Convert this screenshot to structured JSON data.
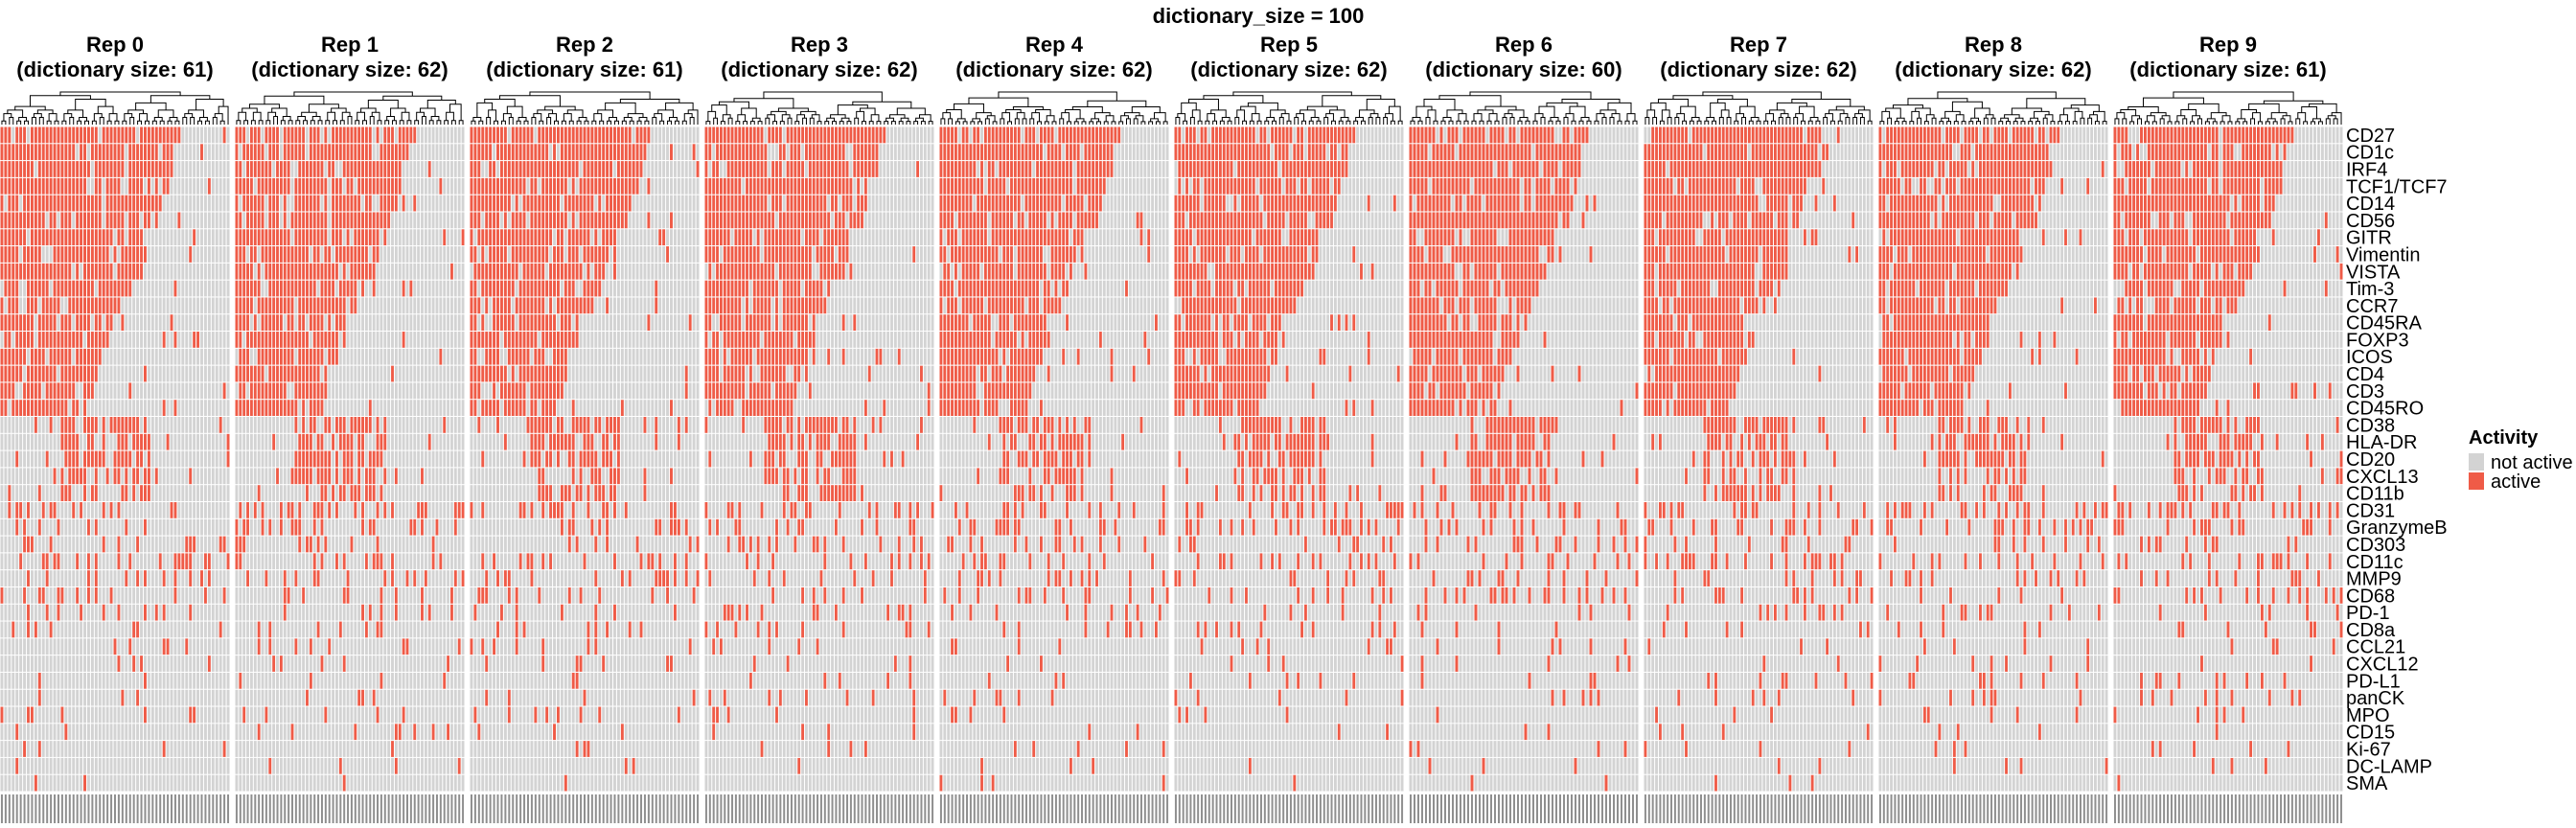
{
  "chart_data": {
    "type": "heatmap",
    "title": "dictionary_size = 100",
    "panels": [
      {
        "title_line1": "Rep 0",
        "title_line2": "(dictionary size: 61)",
        "n_columns": 61
      },
      {
        "title_line1": "Rep 1",
        "title_line2": "(dictionary size: 62)",
        "n_columns": 62
      },
      {
        "title_line1": "Rep 2",
        "title_line2": "(dictionary size: 61)",
        "n_columns": 61
      },
      {
        "title_line1": "Rep 3",
        "title_line2": "(dictionary size: 62)",
        "n_columns": 62
      },
      {
        "title_line1": "Rep 4",
        "title_line2": "(dictionary size: 62)",
        "n_columns": 62
      },
      {
        "title_line1": "Rep 5",
        "title_line2": "(dictionary size: 62)",
        "n_columns": 62
      },
      {
        "title_line1": "Rep 6",
        "title_line2": "(dictionary size: 60)",
        "n_columns": 60
      },
      {
        "title_line1": "Rep 7",
        "title_line2": "(dictionary size: 62)",
        "n_columns": 62
      },
      {
        "title_line1": "Rep 8",
        "title_line2": "(dictionary size: 62)",
        "n_columns": 62
      },
      {
        "title_line1": "Rep 9",
        "title_line2": "(dictionary size: 61)",
        "n_columns": 61
      }
    ],
    "rows": [
      "CD27",
      "CD1c",
      "IRF4",
      "TCF1/TCF7",
      "CD14",
      "CD56",
      "GITR",
      "Vimentin",
      "VISTA",
      "Tim-3",
      "CCR7",
      "CD45RA",
      "FOXP3",
      "ICOS",
      "CD4",
      "CD3",
      "CD45RO",
      "CD38",
      "HLA-DR",
      "CD20",
      "CXCL13",
      "CD11b",
      "CD31",
      "GranzymeB",
      "CD303",
      "CD11c",
      "MMP9",
      "CD68",
      "PD-1",
      "CD8a",
      "CCL21",
      "CXCL12",
      "PD-L1",
      "panCK",
      "MPO",
      "CD15",
      "Ki-67",
      "DC-LAMP",
      "SMA"
    ],
    "row_active_fraction": [
      0.62,
      0.6,
      0.6,
      0.58,
      0.56,
      0.55,
      0.5,
      0.5,
      0.48,
      0.45,
      0.42,
      0.38,
      0.38,
      0.35,
      0.33,
      0.32,
      0.3,
      0.3,
      0.28,
      0.28,
      0.25,
      0.22,
      0.25,
      0.22,
      0.2,
      0.2,
      0.18,
      0.16,
      0.12,
      0.1,
      0.1,
      0.08,
      0.08,
      0.08,
      0.07,
      0.06,
      0.04,
      0.04,
      0.02
    ],
    "legend": {
      "title": "Activity",
      "position": "right",
      "entries": [
        {
          "label": "not active",
          "color": "#d3d3d3"
        },
        {
          "label": "active",
          "color": "#ef5b47"
        }
      ]
    },
    "column_dendrogram": true,
    "column_labels_note": "dense rotated column labels (illegible)"
  }
}
